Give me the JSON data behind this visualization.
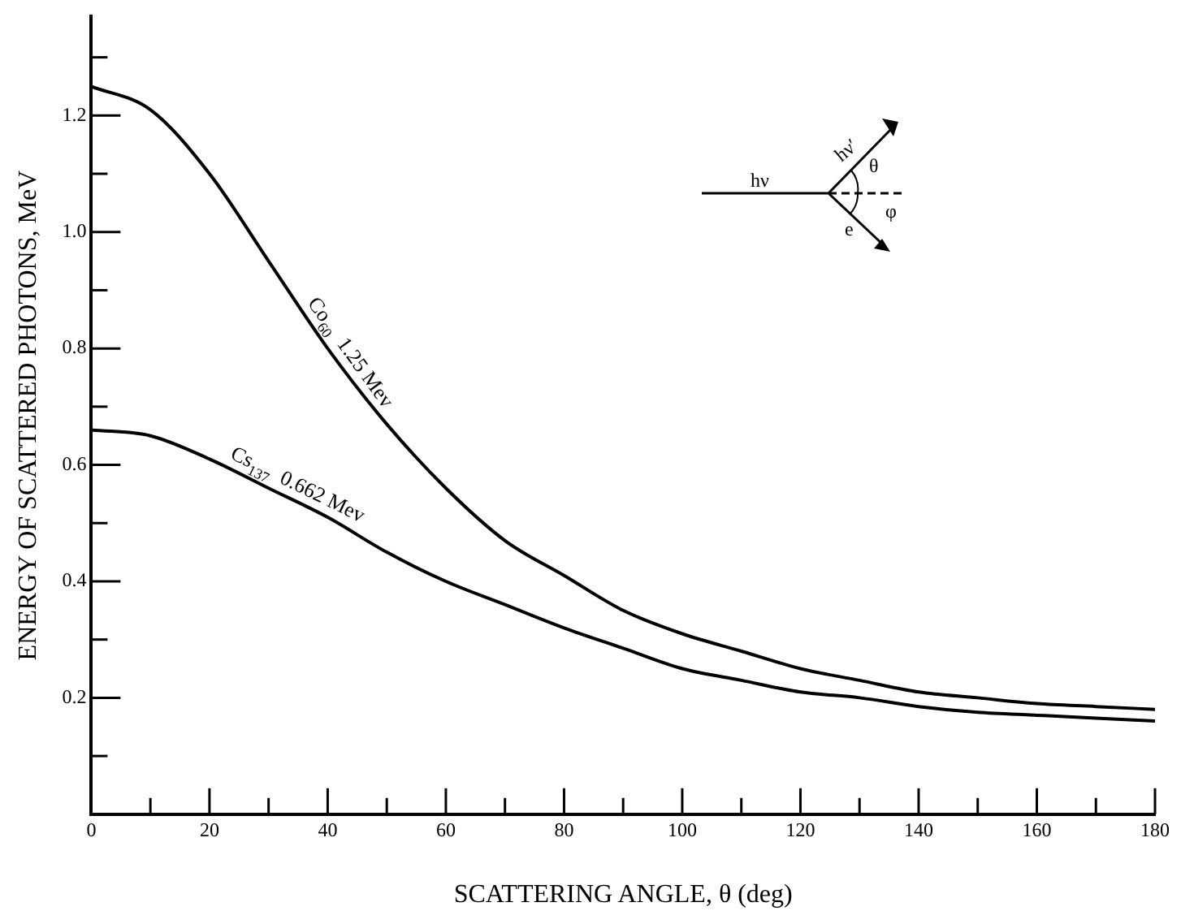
{
  "chart_data": {
    "type": "line",
    "xlabel": "SCATTERING ANGLE, θ (deg)",
    "ylabel": "ENERGY OF SCATTERED PHOTONS, MeV",
    "x": [
      0,
      10,
      20,
      30,
      40,
      50,
      60,
      70,
      80,
      90,
      100,
      110,
      120,
      130,
      140,
      150,
      160,
      170,
      180
    ],
    "series": [
      {
        "name": "Co$_{60}$  1.25 Mev",
        "color": "#000000",
        "values": [
          1.25,
          1.21,
          1.1,
          0.95,
          0.8,
          0.67,
          0.56,
          0.47,
          0.41,
          0.35,
          0.31,
          0.28,
          0.25,
          0.23,
          0.21,
          0.2,
          0.19,
          0.185,
          0.18
        ]
      },
      {
        "name": "Cs$_{137}$  0.662 Mev",
        "color": "#000000",
        "values": [
          0.66,
          0.65,
          0.61,
          0.56,
          0.51,
          0.45,
          0.4,
          0.36,
          0.32,
          0.285,
          0.25,
          0.23,
          0.21,
          0.2,
          0.185,
          0.175,
          0.17,
          0.165,
          0.16
        ]
      }
    ],
    "xlim": [
      0,
      180
    ],
    "xticks": [
      0,
      {
        "value": 10,
        "label": null
      },
      20,
      {
        "value": 30,
        "label": null
      },
      40,
      {
        "value": 50,
        "label": null
      },
      60,
      {
        "value": 70,
        "label": null
      },
      80,
      {
        "value": 90,
        "label": null
      },
      100,
      {
        "value": 110,
        "label": null
      },
      120,
      {
        "value": 130,
        "label": null
      },
      140,
      {
        "value": 150,
        "label": null
      },
      160,
      {
        "value": 170,
        "label": null
      },
      180
    ],
    "ylim": [
      0,
      1.37
    ],
    "yticks": [
      {
        "value": 0.1,
        "label": null
      },
      0.2,
      {
        "value": 0.3,
        "label": null
      },
      0.4,
      {
        "value": 0.5,
        "label": null
      },
      0.6,
      {
        "value": 0.7,
        "label": null
      },
      0.8,
      {
        "value": 0.9,
        "label": null
      },
      {
        "value": 1,
        "label": "1.0"
      },
      {
        "value": 1.1,
        "label": null
      },
      1.2,
      {
        "value": 1.3,
        "label": null
      }
    ],
    "annotations": [
      "hν",
      "hν′",
      "θ",
      "φ",
      "e"
    ],
    "grid": false,
    "legend": false,
    "marker": "none",
    "line_style": "solid"
  }
}
